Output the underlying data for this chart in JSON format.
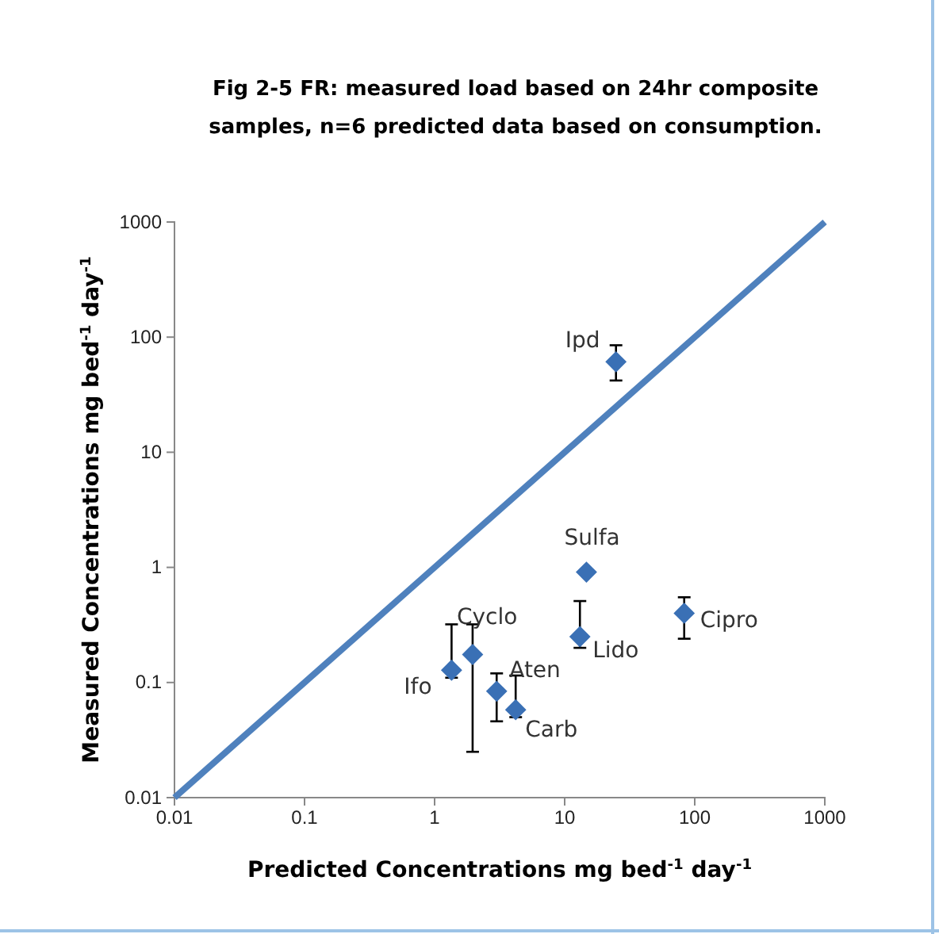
{
  "chart_data": {
    "type": "scatter",
    "title": "Fig 2-5 FR: measured load based on 24hr composite samples, n=6 predicted data based on consumption.",
    "xlabel": "Predicted Concentrations mg bed$^{-1}$ day$^{-1}$",
    "ylabel": "Measured Concentrations mg bed$^{-1}$ day$^{-1}$",
    "log": "xy",
    "xlim": [
      0.01,
      1000
    ],
    "ylim": [
      0.01,
      1000
    ],
    "xticks": [
      0.01,
      0.1,
      1,
      10,
      100,
      1000
    ],
    "yticks": [
      0.01,
      0.1,
      1,
      10,
      100,
      1000
    ],
    "marker": "diamond",
    "series": [
      {
        "color": "#3a70b5",
        "x": [
          24.8,
          14.7,
          13.1,
          83,
          1.35,
          1.96,
          3.0,
          4.2
        ],
        "values": [
          61,
          0.91,
          0.25,
          0.4,
          0.128,
          0.175,
          0.084,
          0.058
        ],
        "errors": [
          [
            42,
            85
          ],
          null,
          [
            0.2,
            0.51
          ],
          [
            0.24,
            0.55
          ],
          [
            0.11,
            0.32
          ],
          [
            0.025,
            0.32
          ],
          [
            0.046,
            0.12
          ],
          [
            0.05,
            0.115
          ]
        ]
      },
      {
        "type": "line",
        "marker": "none",
        "color": "#4f81bd",
        "x": [
          0.01,
          1000
        ],
        "values": [
          0.01,
          1000
        ]
      }
    ],
    "annotations": [
      {
        "text": "Ipd",
        "x": 24.8,
        "y": 61
      },
      {
        "text": "Sulfa",
        "x": 14.7,
        "y": 0.91
      },
      {
        "text": "Lido",
        "x": 13.1,
        "y": 0.25
      },
      {
        "text": "Cipro",
        "x": 83,
        "y": 0.4
      },
      {
        "text": "Ifo",
        "x": 1.35,
        "y": 0.128
      },
      {
        "text": "Cyclo",
        "x": 1.96,
        "y": 0.175
      },
      {
        "text": "Aten",
        "x": 3.0,
        "y": 0.084
      },
      {
        "text": "Carb",
        "x": 4.2,
        "y": 0.058
      }
    ]
  }
}
